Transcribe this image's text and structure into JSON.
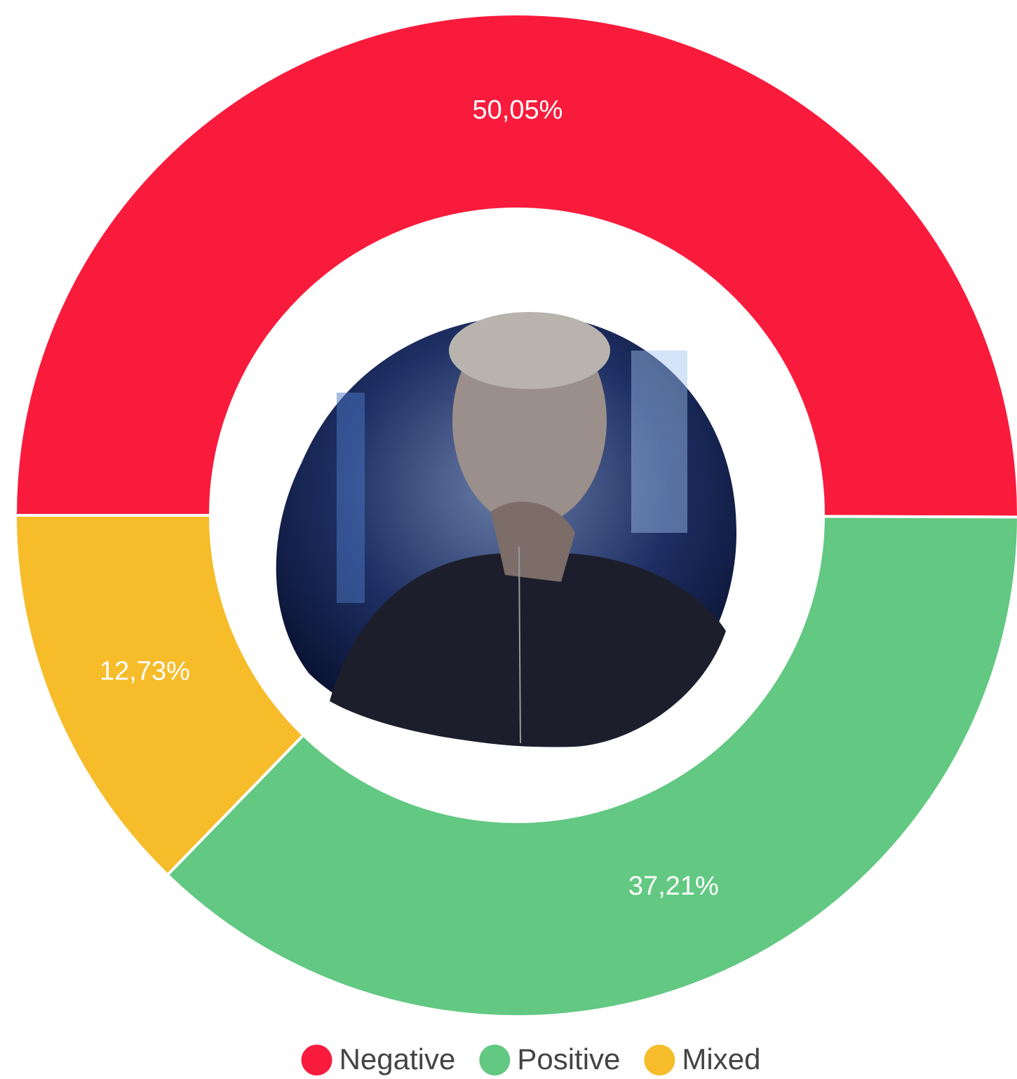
{
  "chart_data": {
    "type": "donut",
    "categories": [
      "Negative",
      "Positive",
      "Mixed"
    ],
    "values": [
      50.05,
      37.21,
      12.73
    ],
    "value_labels": [
      "50,05%",
      "37,21%",
      "12,73%"
    ],
    "colors": [
      "#f91b3c",
      "#62c882",
      "#f6bc2a"
    ],
    "legend": "bottom"
  }
}
